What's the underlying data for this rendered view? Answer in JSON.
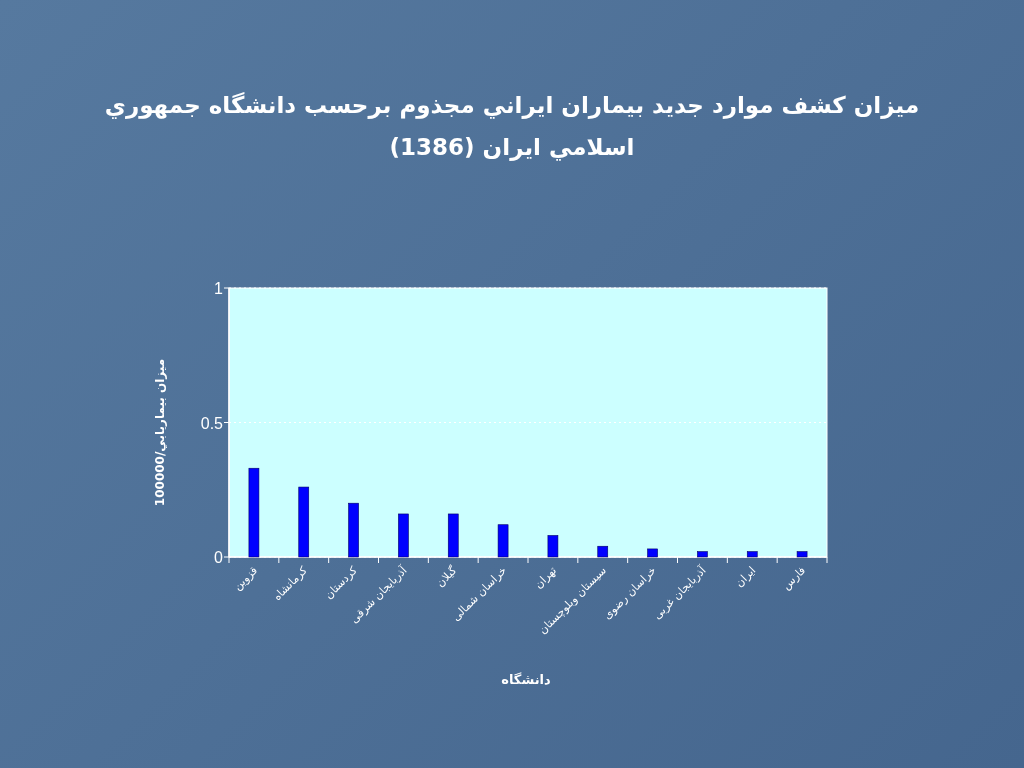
{
  "chart_data": {
    "type": "bar",
    "title": "ميزان كشف موارد جديد بيماران ايراني مجذوم برحسب دانشگاه  جمهوري اسلامي ايران (1386)",
    "xlabel": "دانشگاه",
    "ylabel": "ميزان بيماريابي/100000",
    "categories": [
      "قزوین",
      "کرمانشاه",
      "کردستان",
      "آذربایجان شرقی",
      "گیلان",
      "خراسان شمالی",
      "تهران",
      "سیستان وبلوچستان",
      "خراسان رضوی",
      "آذربایجان غربی",
      "ایران",
      "فارس"
    ],
    "values": [
      0.33,
      0.26,
      0.2,
      0.16,
      0.16,
      0.12,
      0.08,
      0.04,
      0.03,
      0.02,
      0.02,
      0.02
    ],
    "color": "#0000ff",
    "ylim": [
      0,
      1
    ],
    "yticks": [
      0,
      0.5,
      1
    ],
    "grid": "y"
  }
}
